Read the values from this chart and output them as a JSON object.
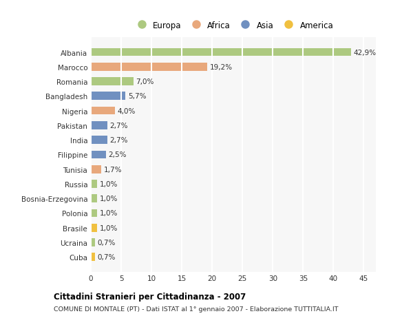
{
  "countries": [
    "Albania",
    "Marocco",
    "Romania",
    "Bangladesh",
    "Nigeria",
    "Pakistan",
    "India",
    "Filippine",
    "Tunisia",
    "Russia",
    "Bosnia-Erzegovina",
    "Polonia",
    "Brasile",
    "Ucraina",
    "Cuba"
  ],
  "values": [
    42.9,
    19.2,
    7.0,
    5.7,
    4.0,
    2.7,
    2.7,
    2.5,
    1.7,
    1.0,
    1.0,
    1.0,
    1.0,
    0.7,
    0.7
  ],
  "labels": [
    "42,9%",
    "19,2%",
    "7,0%",
    "5,7%",
    "4,0%",
    "2,7%",
    "2,7%",
    "2,5%",
    "1,7%",
    "1,0%",
    "1,0%",
    "1,0%",
    "1,0%",
    "0,7%",
    "0,7%"
  ],
  "continents": [
    "Europa",
    "Africa",
    "Europa",
    "Asia",
    "Africa",
    "Asia",
    "Asia",
    "Asia",
    "Africa",
    "Europa",
    "Europa",
    "Europa",
    "America",
    "Europa",
    "America"
  ],
  "colors": {
    "Europa": "#adc980",
    "Africa": "#e8a87c",
    "Asia": "#7090c0",
    "America": "#f0c040"
  },
  "xlim": [
    0,
    47
  ],
  "xticks": [
    0,
    5,
    10,
    15,
    20,
    25,
    30,
    35,
    40,
    45
  ],
  "title": "Cittadini Stranieri per Cittadinanza - 2007",
  "subtitle": "COMUNE DI MONTALE (PT) - Dati ISTAT al 1° gennaio 2007 - Elaborazione TUTTITALIA.IT",
  "background_color": "#ffffff",
  "plot_bg_color": "#f7f7f7",
  "bar_height": 0.55,
  "grid_color": "#ffffff",
  "text_color": "#333333",
  "label_fontsize": 7.5,
  "ytick_fontsize": 7.5,
  "xtick_fontsize": 7.5
}
